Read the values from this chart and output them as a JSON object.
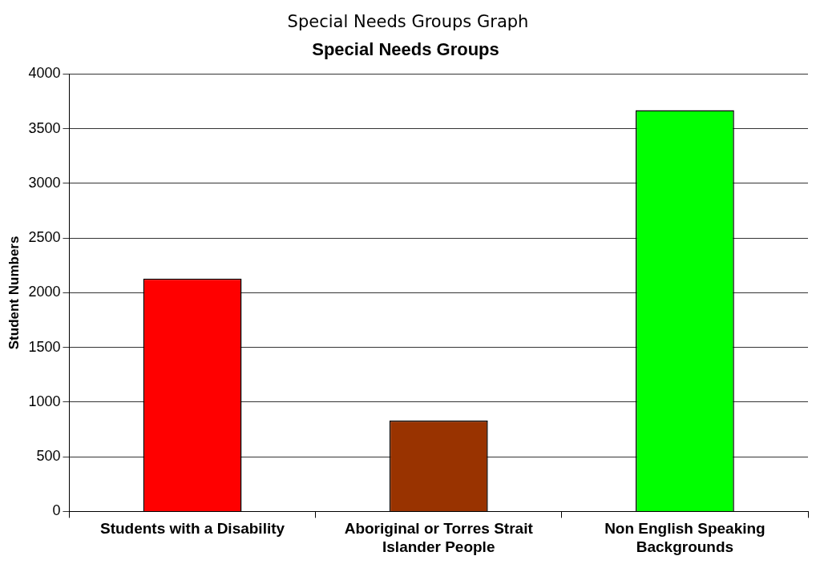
{
  "chart_data": {
    "type": "bar",
    "title": "Special Needs Groups Graph",
    "subtitle": "Special Needs Groups",
    "ylabel": "Student Numbers",
    "categories": [
      "Students with a Disability",
      "Aboriginal or Torres Strait Islander People",
      "Non English Speaking Backgrounds"
    ],
    "values": [
      2130,
      830,
      3670
    ],
    "colors": [
      "#ff0000",
      "#993300",
      "#00ff00"
    ],
    "ylim": [
      0,
      4000
    ],
    "yticks": [
      0,
      500,
      1000,
      1500,
      2000,
      2500,
      3000,
      3500,
      4000
    ],
    "grid": "y",
    "legend": false
  }
}
